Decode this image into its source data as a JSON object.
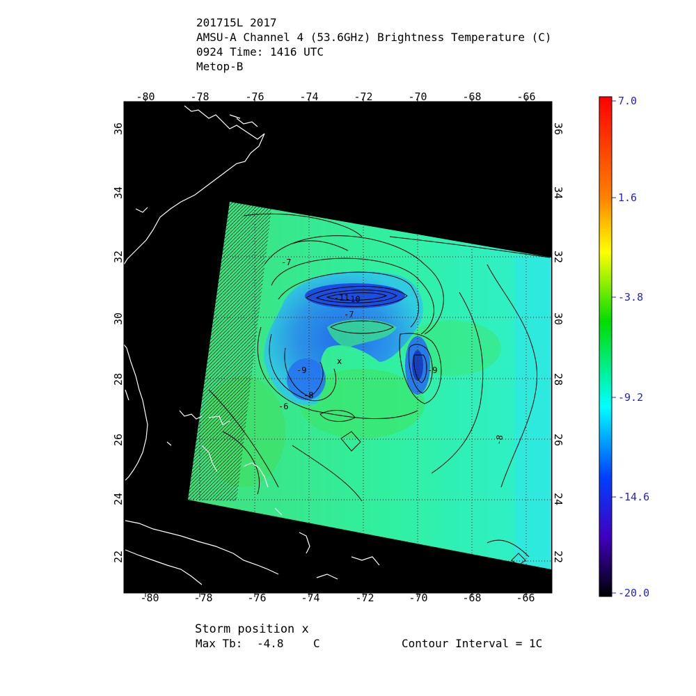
{
  "header": {
    "storm_id": "201715L 2017",
    "product": "AMSU-A Channel 4 (53.6GHz) Brightness Temperature (C)",
    "time": "0924 Time: 1416 UTC",
    "satellite": "Metop-B"
  },
  "map": {
    "lon_ticks": [
      "-80",
      "-78",
      "-76",
      "-74",
      "-72",
      "-70",
      "-68",
      "-66"
    ],
    "lat_ticks": [
      "36",
      "34",
      "32",
      "30",
      "28",
      "26",
      "24",
      "22"
    ],
    "lon_range": [
      -80.5,
      -65.5
    ],
    "lat_range": [
      21.0,
      37.0
    ],
    "colors": {
      "background": "#000000",
      "coastline": "#ffffff",
      "gridline": "#4a4a4a",
      "swath_base": "#2ef2a0",
      "cold_core": "#1e64ff",
      "ring": "#24c6e0"
    },
    "contour_labels": [
      "-11",
      "-10",
      "-9",
      "-9",
      "-8",
      "-8",
      "-7",
      "-7",
      "-6"
    ],
    "storm_marker": "x"
  },
  "colorbar": {
    "ticks": [
      "7.0",
      "1.6",
      "-3.8",
      "-9.2",
      "-14.6",
      "-20.0"
    ],
    "colors": [
      "#ff0000",
      "#ff8000",
      "#ffff00",
      "#00dd00",
      "#00ffff",
      "#0040ff",
      "#4000c0",
      "#000000"
    ]
  },
  "footer": {
    "storm_position": "Storm position x",
    "max_tb_label": "Max Tb:",
    "max_tb_value": "-4.8",
    "max_tb_unit": "C",
    "contour_interval": "Contour Interval = 1C"
  }
}
